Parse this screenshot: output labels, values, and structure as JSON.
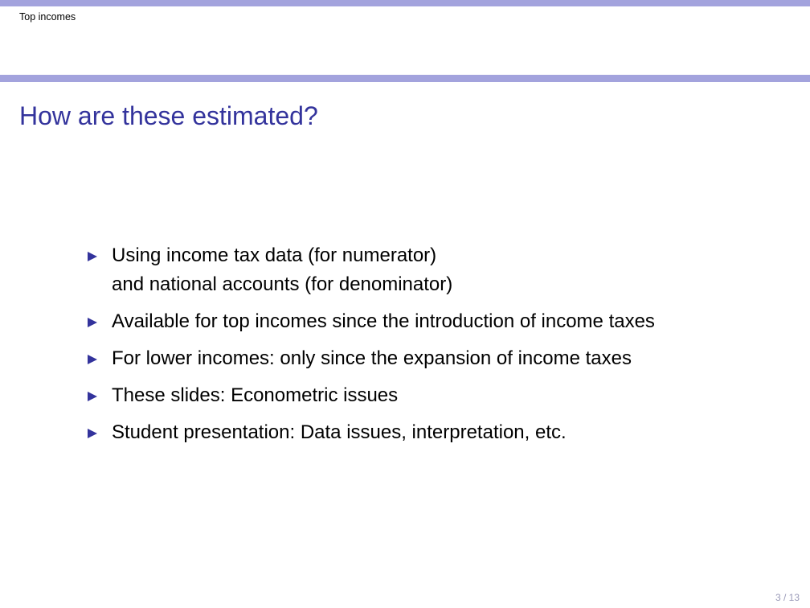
{
  "header": {
    "section": "Top incomes"
  },
  "slide": {
    "title": "How are these estimated?",
    "bullets": [
      {
        "line1": "Using income tax data (for numerator)",
        "line2": "and national accounts (for denominator)"
      },
      {
        "line1": "Available for top incomes since the introduction of income taxes"
      },
      {
        "line1": "For lower incomes: only since the expansion of income taxes"
      },
      {
        "line1": "These slides: Econometric issues"
      },
      {
        "line1": "Student presentation: Data issues, interpretation, etc."
      }
    ]
  },
  "footer": {
    "page_number": "3 / 13"
  },
  "colors": {
    "bar": "#a3a3dd",
    "title": "#33339c",
    "bullet": "#33339c"
  }
}
